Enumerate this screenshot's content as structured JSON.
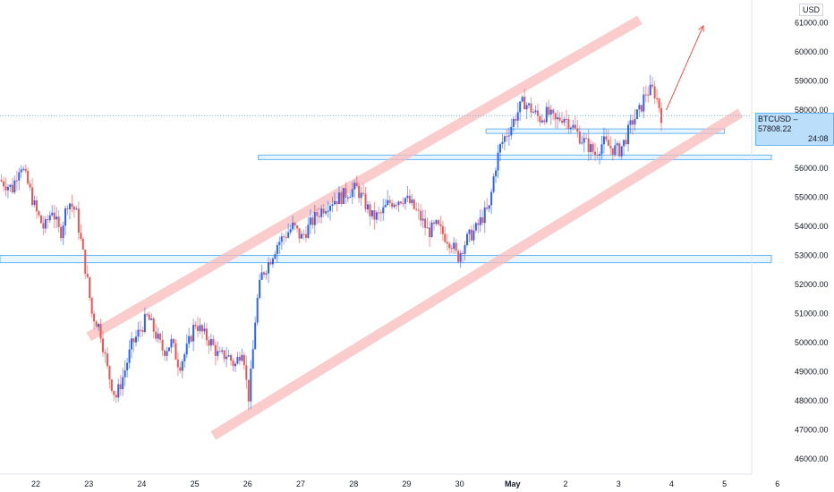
{
  "chart_data": {
    "type": "candlestick",
    "symbol": "BTCUSD",
    "currency": "USD",
    "last_price": "57808.22",
    "countdown": "24:08",
    "ylim": [
      45500,
      62000
    ],
    "y_ticks": [
      "46000.00",
      "47000.00",
      "48000.00",
      "49000.00",
      "50000.00",
      "51000.00",
      "52000.00",
      "53000.00",
      "54000.00",
      "55000.00",
      "56000.00",
      "57000.00",
      "58000.00",
      "59000.00",
      "60000.00",
      "61000.00"
    ],
    "y_tick_values": [
      46000,
      47000,
      48000,
      49000,
      50000,
      51000,
      52000,
      53000,
      54000,
      55000,
      56000,
      57000,
      58000,
      59000,
      60000,
      61000
    ],
    "x_ticks": [
      {
        "label": "22",
        "day": 21.0
      },
      {
        "label": "23",
        "day": 22.0
      },
      {
        "label": "24",
        "day": 23.0
      },
      {
        "label": "25",
        "day": 24.0
      },
      {
        "label": "26",
        "day": 25.0
      },
      {
        "label": "27",
        "day": 26.0
      },
      {
        "label": "28",
        "day": 27.0
      },
      {
        "label": "29",
        "day": 28.0
      },
      {
        "label": "30",
        "day": 29.0
      },
      {
        "label": "May",
        "day": 30.0
      },
      {
        "label": "2",
        "day": 31.0
      },
      {
        "label": "3",
        "day": 32.0
      },
      {
        "label": "4",
        "day": 33.0
      },
      {
        "label": "5",
        "day": 34.0
      },
      {
        "label": "6",
        "day": 35.0
      }
    ],
    "price_path": [
      [
        20.35,
        55600
      ],
      [
        20.6,
        55300
      ],
      [
        20.75,
        56200
      ],
      [
        20.9,
        55400
      ],
      [
        21.05,
        54500
      ],
      [
        21.2,
        53900
      ],
      [
        21.35,
        54600
      ],
      [
        21.5,
        53700
      ],
      [
        21.65,
        54900
      ],
      [
        21.8,
        54500
      ],
      [
        21.9,
        53400
      ],
      [
        22.0,
        52300
      ],
      [
        22.1,
        51000
      ],
      [
        22.25,
        50500
      ],
      [
        22.4,
        49000
      ],
      [
        22.55,
        48100
      ],
      [
        22.7,
        48900
      ],
      [
        22.85,
        49900
      ],
      [
        23.0,
        50400
      ],
      [
        23.15,
        50900
      ],
      [
        23.3,
        50300
      ],
      [
        23.45,
        49700
      ],
      [
        23.6,
        50000
      ],
      [
        23.75,
        49200
      ],
      [
        23.9,
        49800
      ],
      [
        24.05,
        50700
      ],
      [
        24.2,
        50300
      ],
      [
        24.35,
        50000
      ],
      [
        24.5,
        49500
      ],
      [
        24.65,
        49600
      ],
      [
        24.8,
        49200
      ],
      [
        24.95,
        49900
      ],
      [
        25.05,
        48000
      ],
      [
        25.12,
        49200
      ],
      [
        25.2,
        51200
      ],
      [
        25.3,
        52300
      ],
      [
        25.45,
        52800
      ],
      [
        25.6,
        53400
      ],
      [
        25.75,
        53700
      ],
      [
        25.9,
        54000
      ],
      [
        26.05,
        53600
      ],
      [
        26.2,
        54000
      ],
      [
        26.35,
        54400
      ],
      [
        26.5,
        54700
      ],
      [
        26.65,
        54900
      ],
      [
        26.8,
        55000
      ],
      [
        26.95,
        55200
      ],
      [
        27.1,
        55300
      ],
      [
        27.25,
        54800
      ],
      [
        27.4,
        54300
      ],
      [
        27.55,
        54400
      ],
      [
        27.7,
        54800
      ],
      [
        27.85,
        54900
      ],
      [
        28.0,
        55000
      ],
      [
        28.15,
        54700
      ],
      [
        28.3,
        54300
      ],
      [
        28.45,
        53800
      ],
      [
        28.6,
        54000
      ],
      [
        28.75,
        53700
      ],
      [
        28.9,
        53400
      ],
      [
        29.0,
        52900
      ],
      [
        29.1,
        53300
      ],
      [
        29.2,
        53600
      ],
      [
        29.35,
        53900
      ],
      [
        29.5,
        54400
      ],
      [
        29.6,
        54600
      ],
      [
        29.7,
        55900
      ],
      [
        29.8,
        56700
      ],
      [
        29.9,
        57100
      ],
      [
        30.0,
        57400
      ],
      [
        30.1,
        57800
      ],
      [
        30.25,
        58300
      ],
      [
        30.4,
        58000
      ],
      [
        30.55,
        57700
      ],
      [
        30.7,
        57900
      ],
      [
        30.85,
        57600
      ],
      [
        31.0,
        57800
      ],
      [
        31.15,
        57500
      ],
      [
        31.3,
        57100
      ],
      [
        31.45,
        56800
      ],
      [
        31.6,
        56500
      ],
      [
        31.75,
        56900
      ],
      [
        31.9,
        56700
      ],
      [
        32.05,
        56600
      ],
      [
        32.15,
        56900
      ],
      [
        32.3,
        57600
      ],
      [
        32.45,
        58000
      ],
      [
        32.55,
        58600
      ],
      [
        32.7,
        58700
      ],
      [
        32.8,
        58200
      ],
      [
        32.85,
        57800
      ]
    ],
    "ascending_channel": {
      "upper_line": [
        [
          22.0,
          50200
        ],
        [
          32.4,
          61100
        ]
      ],
      "lower_line": [
        [
          24.35,
          46800
        ],
        [
          34.3,
          57900
        ]
      ]
    },
    "horizontal_zones": [
      {
        "day_start": 20.3,
        "day_end": 35.0,
        "low": 52750,
        "high": 53000
      },
      {
        "day_start": 25.2,
        "day_end": 35.0,
        "low": 56300,
        "high": 56450
      },
      {
        "day_start": 29.5,
        "day_end": 34.0,
        "low": 57200,
        "high": 57350
      }
    ],
    "projection_arrow": [
      [
        32.9,
        58000
      ],
      [
        33.6,
        60900
      ]
    ],
    "colors": {
      "up": "#2962ff",
      "down": "#ef5350",
      "zone_fill": "#e3f2fd",
      "zone_stroke": "#64b5f6",
      "channel": "#f8bbbb",
      "arrow": "#ef5350",
      "price_line": "#64b5f6"
    }
  }
}
